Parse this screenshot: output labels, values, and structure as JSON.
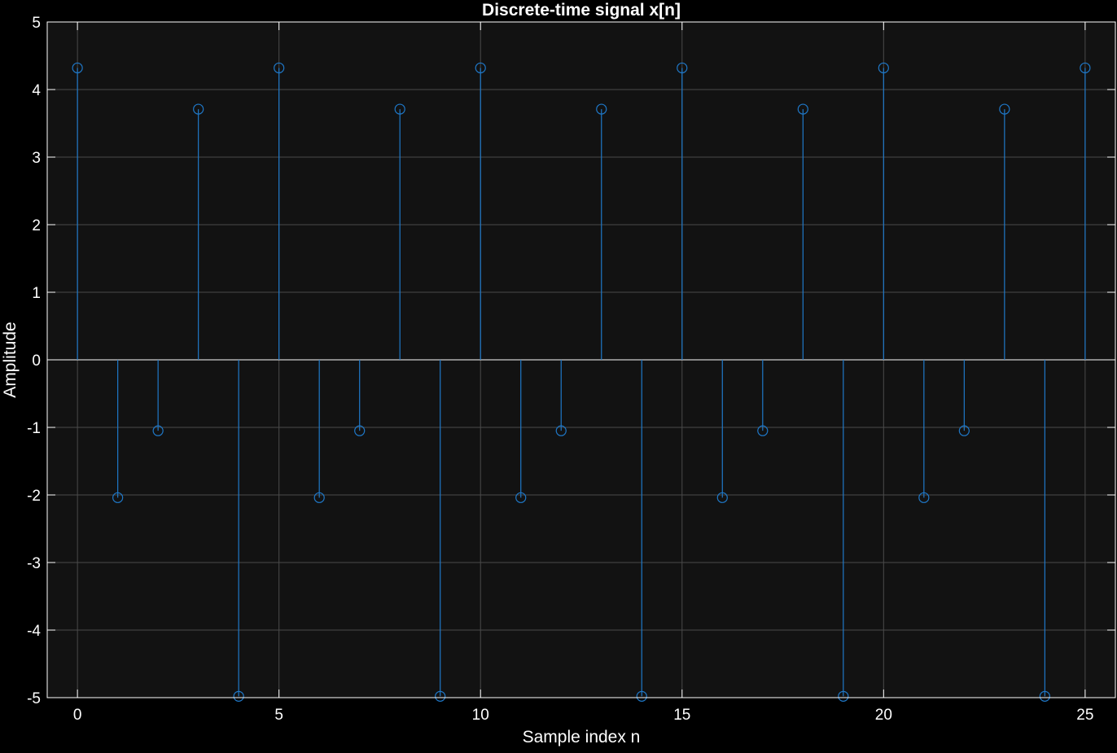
{
  "chart_data": {
    "type": "stem",
    "title": "Discrete-time signal x[n]",
    "xlabel": "Sample index n",
    "ylabel": "Amplitude",
    "xlim": [
      -0.75,
      25.75
    ],
    "ylim": [
      -5,
      5
    ],
    "xticks": [
      0,
      5,
      10,
      15,
      20,
      25
    ],
    "yticks": [
      -5,
      -4,
      -3,
      -2,
      -1,
      0,
      1,
      2,
      3,
      4,
      5
    ],
    "grid": true,
    "x": [
      0,
      1,
      2,
      3,
      4,
      5,
      6,
      7,
      8,
      9,
      10,
      11,
      12,
      13,
      14,
      15,
      16,
      17,
      18,
      19,
      20,
      21,
      22,
      23,
      24,
      25
    ],
    "values": [
      4.32,
      -2.04,
      -1.05,
      3.71,
      -4.98,
      4.32,
      -2.04,
      -1.05,
      3.71,
      -4.98,
      4.32,
      -2.04,
      -1.05,
      3.71,
      -4.98,
      4.32,
      -2.04,
      -1.05,
      3.71,
      -4.98,
      4.32,
      -2.04,
      -1.05,
      3.71,
      -4.98,
      4.32
    ],
    "colors": {
      "background": "#000000",
      "plot_area": "#121212",
      "grid": "#4a4a4a",
      "axes": "#ffffff",
      "series": "#1f78c8",
      "baseline": "#ffffff"
    }
  }
}
